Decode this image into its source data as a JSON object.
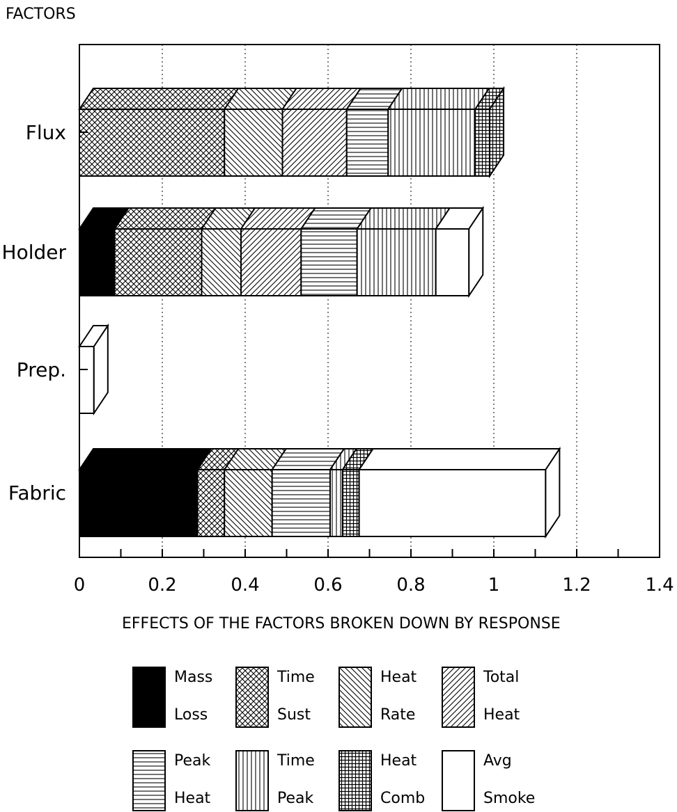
{
  "chart_data": {
    "type": "bar",
    "orientation": "horizontal",
    "stacked": true,
    "style_3d": true,
    "ylabel": "FACTORS",
    "xlabel": "EFFECTS OF THE FACTORS BROKEN DOWN BY RESPONSE",
    "xlim": [
      0,
      1.4
    ],
    "xticks": [
      "0",
      "0.2",
      "0.4",
      "0.6",
      "0.8",
      "1",
      "1.2",
      "1.4"
    ],
    "grid": "vertical dotted",
    "categories": [
      "Flux",
      "Holder",
      "Prep.",
      "Fabric"
    ],
    "series": [
      {
        "name_line1": "Mass",
        "name_line2": "Loss",
        "pattern": "solid",
        "values": [
          0,
          0.085,
          0,
          0.285
        ]
      },
      {
        "name_line1": "Time",
        "name_line2": "Sust",
        "pattern": "crosshatch",
        "values": [
          0.35,
          0.21,
          0,
          0.065
        ]
      },
      {
        "name_line1": "Heat",
        "name_line2": "Rate",
        "pattern": "backslash",
        "values": [
          0.14,
          0.095,
          0,
          0.115
        ]
      },
      {
        "name_line1": "Total",
        "name_line2": "Heat",
        "pattern": "slash",
        "values": [
          0.155,
          0.145,
          0,
          0
        ]
      },
      {
        "name_line1": "Peak",
        "name_line2": "Heat",
        "pattern": "horizontal",
        "values": [
          0.1,
          0.135,
          0,
          0.14
        ]
      },
      {
        "name_line1": "Time",
        "name_line2": "Peak",
        "pattern": "vertical",
        "values": [
          0.21,
          0.19,
          0,
          0.03
        ]
      },
      {
        "name_line1": "Heat",
        "name_line2": "Comb",
        "pattern": "grid",
        "values": [
          0.035,
          0,
          0,
          0.04
        ]
      },
      {
        "name_line1": "Avg",
        "name_line2": "Smoke",
        "pattern": "empty",
        "values": [
          0,
          0.08,
          0.035,
          0.45
        ]
      }
    ],
    "legend_position": "bottom"
  }
}
